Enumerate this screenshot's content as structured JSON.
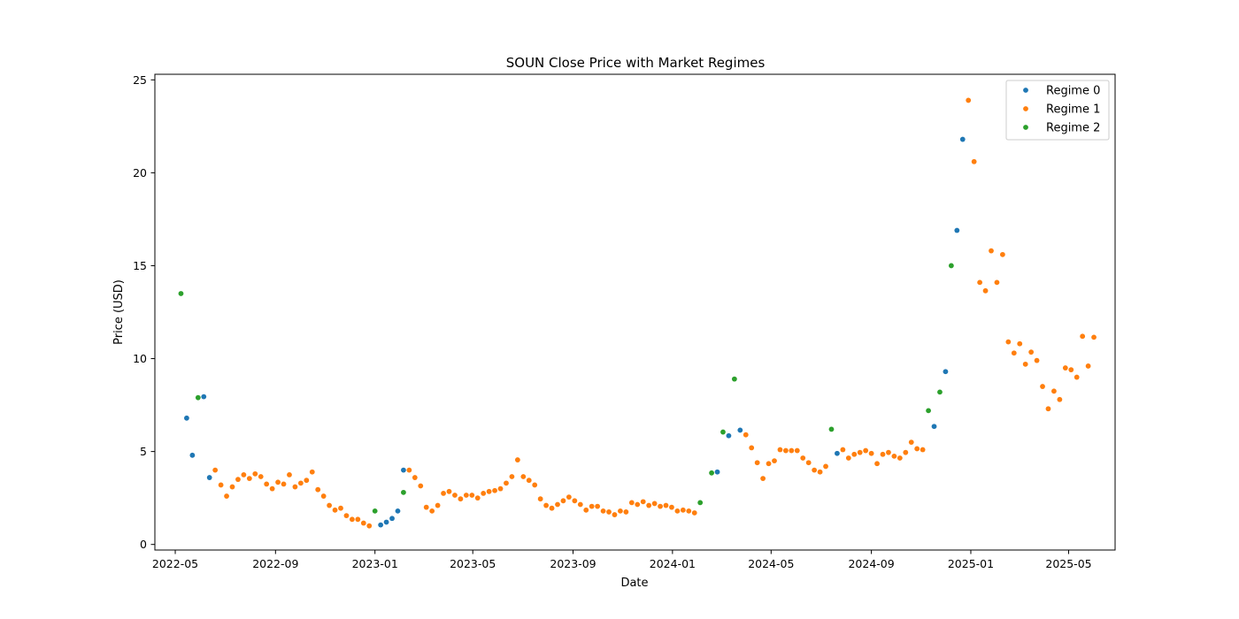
{
  "chart_data": {
    "type": "scatter",
    "title": "SOUN Close Price with Market Regimes",
    "xlabel": "Date",
    "ylabel": "Price (USD)",
    "x_axis_type": "date",
    "xlim": [
      "2022-04-06",
      "2025-06-27"
    ],
    "ylim": [
      -0.3,
      25.3
    ],
    "xticks": [
      "2022-05",
      "2022-09",
      "2023-01",
      "2023-05",
      "2023-09",
      "2024-01",
      "2024-05",
      "2024-09",
      "2025-01",
      "2025-05"
    ],
    "yticks": [
      0,
      5,
      10,
      15,
      20,
      25
    ],
    "grid": false,
    "legend_position": "top-right",
    "series": [
      {
        "name": "Regime 0",
        "color": "#1f77b4",
        "points": [
          [
            "2022-05-15",
            6.8
          ],
          [
            "2022-05-22",
            4.8
          ],
          [
            "2022-06-05",
            7.95
          ],
          [
            "2022-06-12",
            3.6
          ],
          [
            "2023-01-08",
            1.05
          ],
          [
            "2023-01-15",
            1.2
          ],
          [
            "2023-01-22",
            1.4
          ],
          [
            "2023-01-29",
            1.8
          ],
          [
            "2023-02-05",
            4.0
          ],
          [
            "2024-02-25",
            3.9
          ],
          [
            "2024-03-10",
            5.85
          ],
          [
            "2024-03-24",
            6.15
          ],
          [
            "2024-07-21",
            4.9
          ],
          [
            "2024-11-17",
            6.35
          ],
          [
            "2024-12-01",
            9.3
          ],
          [
            "2024-12-15",
            16.9
          ],
          [
            "2024-12-22",
            21.8
          ]
        ]
      },
      {
        "name": "Regime 1",
        "color": "#ff7f0e",
        "points": [
          [
            "2022-06-19",
            4.0
          ],
          [
            "2022-06-26",
            3.2
          ],
          [
            "2022-07-03",
            2.6
          ],
          [
            "2022-07-10",
            3.1
          ],
          [
            "2022-07-17",
            3.5
          ],
          [
            "2022-07-24",
            3.75
          ],
          [
            "2022-07-31",
            3.55
          ],
          [
            "2022-08-07",
            3.8
          ],
          [
            "2022-08-14",
            3.65
          ],
          [
            "2022-08-21",
            3.25
          ],
          [
            "2022-08-28",
            3.0
          ],
          [
            "2022-09-04",
            3.35
          ],
          [
            "2022-09-11",
            3.25
          ],
          [
            "2022-09-18",
            3.75
          ],
          [
            "2022-09-25",
            3.1
          ],
          [
            "2022-10-02",
            3.3
          ],
          [
            "2022-10-09",
            3.45
          ],
          [
            "2022-10-16",
            3.9
          ],
          [
            "2022-10-23",
            2.95
          ],
          [
            "2022-10-30",
            2.6
          ],
          [
            "2022-11-06",
            2.1
          ],
          [
            "2022-11-13",
            1.85
          ],
          [
            "2022-11-20",
            1.95
          ],
          [
            "2022-11-27",
            1.55
          ],
          [
            "2022-12-04",
            1.35
          ],
          [
            "2022-12-11",
            1.35
          ],
          [
            "2022-12-18",
            1.15
          ],
          [
            "2022-12-25",
            1.0
          ],
          [
            "2023-02-12",
            4.0
          ],
          [
            "2023-02-19",
            3.6
          ],
          [
            "2023-02-26",
            3.15
          ],
          [
            "2023-03-05",
            2.0
          ],
          [
            "2023-03-12",
            1.8
          ],
          [
            "2023-03-19",
            2.1
          ],
          [
            "2023-03-26",
            2.75
          ],
          [
            "2023-04-02",
            2.85
          ],
          [
            "2023-04-09",
            2.65
          ],
          [
            "2023-04-16",
            2.45
          ],
          [
            "2023-04-23",
            2.65
          ],
          [
            "2023-04-30",
            2.65
          ],
          [
            "2023-05-07",
            2.5
          ],
          [
            "2023-05-14",
            2.75
          ],
          [
            "2023-05-21",
            2.85
          ],
          [
            "2023-05-28",
            2.9
          ],
          [
            "2023-06-04",
            3.0
          ],
          [
            "2023-06-11",
            3.3
          ],
          [
            "2023-06-18",
            3.65
          ],
          [
            "2023-06-25",
            4.55
          ],
          [
            "2023-07-02",
            3.65
          ],
          [
            "2023-07-09",
            3.45
          ],
          [
            "2023-07-16",
            3.2
          ],
          [
            "2023-07-23",
            2.45
          ],
          [
            "2023-07-30",
            2.1
          ],
          [
            "2023-08-06",
            1.95
          ],
          [
            "2023-08-13",
            2.15
          ],
          [
            "2023-08-20",
            2.35
          ],
          [
            "2023-08-27",
            2.55
          ],
          [
            "2023-09-03",
            2.35
          ],
          [
            "2023-09-10",
            2.15
          ],
          [
            "2023-09-17",
            1.85
          ],
          [
            "2023-09-24",
            2.05
          ],
          [
            "2023-10-01",
            2.05
          ],
          [
            "2023-10-08",
            1.8
          ],
          [
            "2023-10-15",
            1.75
          ],
          [
            "2023-10-22",
            1.6
          ],
          [
            "2023-10-29",
            1.8
          ],
          [
            "2023-11-05",
            1.75
          ],
          [
            "2023-11-12",
            2.25
          ],
          [
            "2023-11-19",
            2.15
          ],
          [
            "2023-11-26",
            2.3
          ],
          [
            "2023-12-03",
            2.1
          ],
          [
            "2023-12-10",
            2.2
          ],
          [
            "2023-12-17",
            2.05
          ],
          [
            "2023-12-24",
            2.1
          ],
          [
            "2023-12-31",
            2.0
          ],
          [
            "2024-01-07",
            1.8
          ],
          [
            "2024-01-14",
            1.85
          ],
          [
            "2024-01-21",
            1.8
          ],
          [
            "2024-01-28",
            1.7
          ],
          [
            "2024-03-31",
            5.9
          ],
          [
            "2024-04-07",
            5.2
          ],
          [
            "2024-04-14",
            4.4
          ],
          [
            "2024-04-21",
            3.55
          ],
          [
            "2024-04-28",
            4.35
          ],
          [
            "2024-05-05",
            4.5
          ],
          [
            "2024-05-12",
            5.1
          ],
          [
            "2024-05-19",
            5.05
          ],
          [
            "2024-05-26",
            5.05
          ],
          [
            "2024-06-02",
            5.05
          ],
          [
            "2024-06-09",
            4.65
          ],
          [
            "2024-06-16",
            4.4
          ],
          [
            "2024-06-23",
            4.0
          ],
          [
            "2024-06-30",
            3.9
          ],
          [
            "2024-07-07",
            4.2
          ],
          [
            "2024-07-28",
            5.1
          ],
          [
            "2024-08-04",
            4.65
          ],
          [
            "2024-08-11",
            4.85
          ],
          [
            "2024-08-18",
            4.95
          ],
          [
            "2024-08-25",
            5.05
          ],
          [
            "2024-09-01",
            4.9
          ],
          [
            "2024-09-08",
            4.35
          ],
          [
            "2024-09-15",
            4.85
          ],
          [
            "2024-09-22",
            4.95
          ],
          [
            "2024-09-29",
            4.75
          ],
          [
            "2024-10-06",
            4.65
          ],
          [
            "2024-10-13",
            4.95
          ],
          [
            "2024-10-20",
            5.5
          ],
          [
            "2024-10-27",
            5.15
          ],
          [
            "2024-11-03",
            5.1
          ],
          [
            "2024-12-29",
            23.9
          ],
          [
            "2025-01-05",
            20.6
          ],
          [
            "2025-01-12",
            14.1
          ],
          [
            "2025-01-19",
            13.65
          ],
          [
            "2025-01-26",
            15.8
          ],
          [
            "2025-02-02",
            14.1
          ],
          [
            "2025-02-09",
            15.6
          ],
          [
            "2025-02-16",
            10.9
          ],
          [
            "2025-02-23",
            10.3
          ],
          [
            "2025-03-02",
            10.8
          ],
          [
            "2025-03-09",
            9.7
          ],
          [
            "2025-03-16",
            10.35
          ],
          [
            "2025-03-23",
            9.9
          ],
          [
            "2025-03-30",
            8.5
          ],
          [
            "2025-04-06",
            7.3
          ],
          [
            "2025-04-13",
            8.25
          ],
          [
            "2025-04-20",
            7.8
          ],
          [
            "2025-04-27",
            9.5
          ],
          [
            "2025-05-04",
            9.4
          ],
          [
            "2025-05-11",
            9.0
          ],
          [
            "2025-05-18",
            11.2
          ],
          [
            "2025-05-25",
            9.6
          ],
          [
            "2025-06-01",
            11.15
          ]
        ]
      },
      {
        "name": "Regime 2",
        "color": "#2ca02c",
        "points": [
          [
            "2022-05-08",
            13.5
          ],
          [
            "2022-05-29",
            7.9
          ],
          [
            "2023-01-01",
            1.8
          ],
          [
            "2023-02-05",
            2.8
          ],
          [
            "2024-02-04",
            2.25
          ],
          [
            "2024-02-18",
            3.85
          ],
          [
            "2024-03-03",
            6.05
          ],
          [
            "2024-03-17",
            8.9
          ],
          [
            "2024-07-14",
            6.2
          ],
          [
            "2024-11-10",
            7.2
          ],
          [
            "2024-11-24",
            8.2
          ],
          [
            "2024-12-08",
            15.0
          ]
        ]
      }
    ]
  }
}
